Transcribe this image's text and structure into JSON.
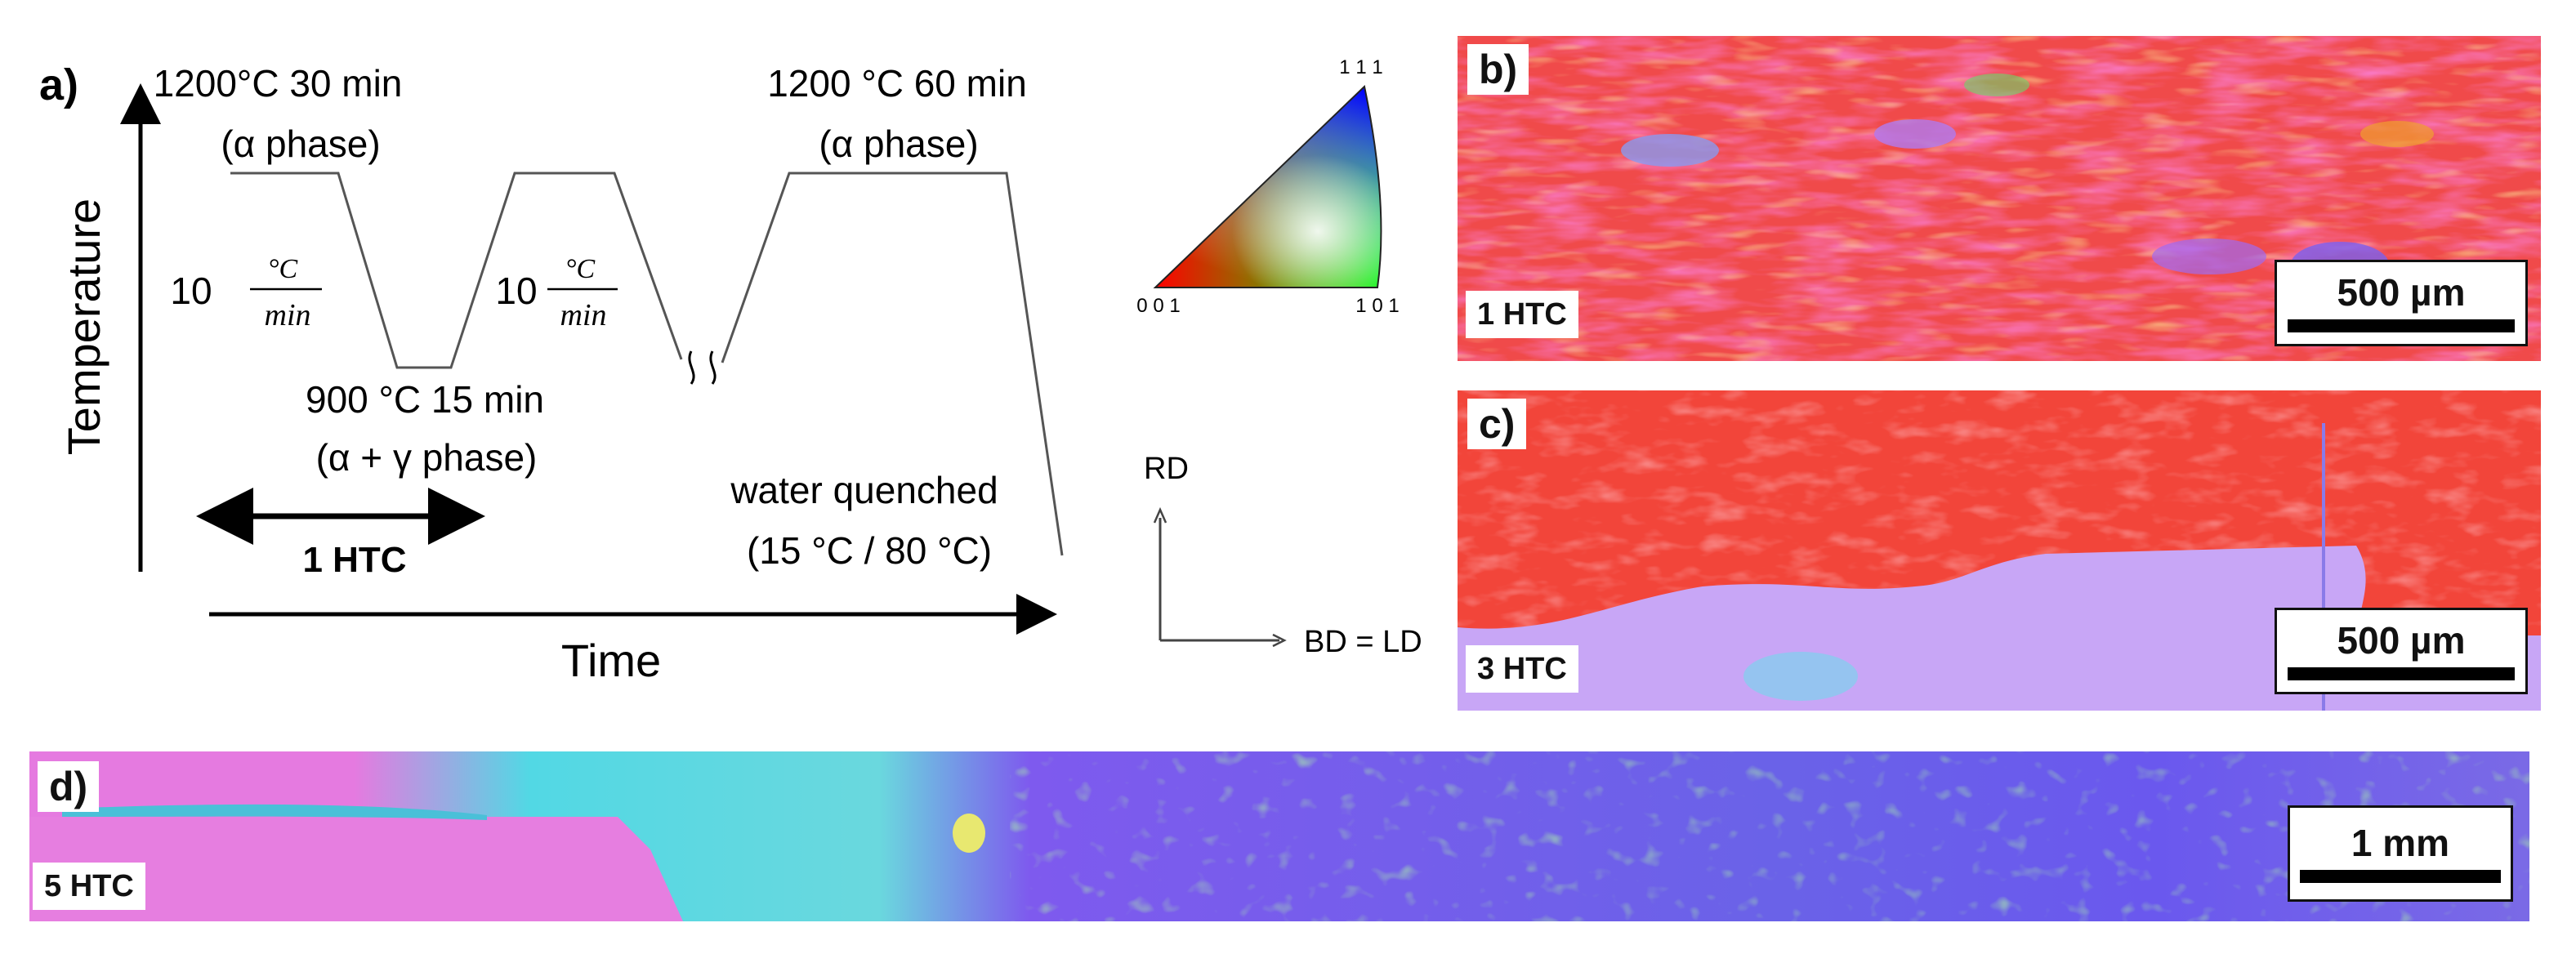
{
  "scheme": {
    "panel_label": "a)",
    "y_axis_label": "Temperature",
    "x_axis_label": "Time",
    "step1_temp": "1200°C 30 min",
    "step1_phase": "(α phase)",
    "step2_temp": "900 °C 15 min",
    "step2_phase": "(α + γ phase)",
    "step3_temp": "1200 °C 60 min",
    "step3_phase": "(α phase)",
    "rate_value": "10",
    "rate_num": "°C",
    "rate_den": "min",
    "cycle_label": "1 HTC",
    "quench_line1": "water quenched",
    "quench_line2": "(15 °C / 80 °C)"
  },
  "ipf_key": {
    "corner_top": "1 1 1",
    "corner_left": "0 0 1",
    "corner_right": "1 0 1",
    "dir_vertical": "RD",
    "dir_horizontal": "BD = LD"
  },
  "maps": [
    {
      "label": "b)",
      "cycles": "1 HTC",
      "scale": "500 µm"
    },
    {
      "label": "c)",
      "cycles": "3 HTC",
      "scale": "500 µm"
    },
    {
      "label": "d)",
      "cycles": "5 HTC",
      "scale": "1 mm"
    }
  ],
  "colors": {
    "grain_red": "#f0403a",
    "grain_pink": "#f070d8",
    "grain_violet": "#c49cf4",
    "grain_cyan": "#4fe0e0",
    "grain_blue": "#5a5af0",
    "grain_green": "#6ad86a"
  }
}
